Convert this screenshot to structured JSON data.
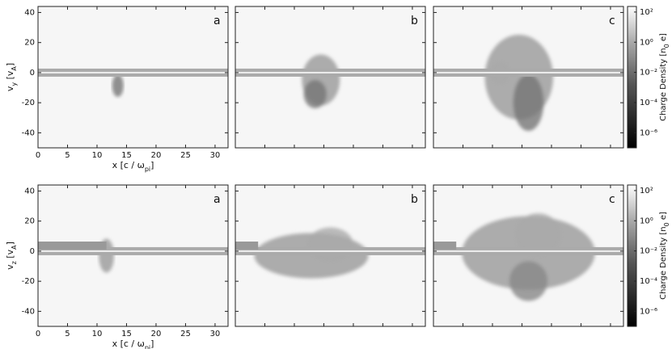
{
  "chart_data": [
    {
      "type": "heatmap",
      "panels": [
        "a",
        "b",
        "c"
      ],
      "x_label_parts": [
        "x [c / ω",
        "pi",
        "]"
      ],
      "y_label_parts": [
        "v",
        "y",
        " [v",
        "A",
        "]"
      ],
      "xlim": [
        0,
        32.2
      ],
      "xticks": [
        0,
        5,
        10,
        15,
        20,
        25,
        30
      ],
      "ylim": [
        -50,
        44
      ],
      "yticks": [
        -40,
        -20,
        0,
        20,
        40
      ],
      "colorbar": {
        "label_parts": [
          "Charge Density [n",
          "0",
          " e]"
        ],
        "log": true,
        "lim": [
          1e-07,
          234
        ],
        "ticks": [
          {
            "value": 100,
            "label": "10²"
          },
          {
            "value": 1,
            "label": "10⁰"
          },
          {
            "value": 0.01,
            "label": "10⁻²"
          },
          {
            "value": 0.0001,
            "label": "10⁻⁴"
          },
          {
            "value": 1e-06,
            "label": "10⁻⁶"
          }
        ]
      }
    },
    {
      "type": "heatmap",
      "panels": [
        "a",
        "b",
        "c"
      ],
      "x_label_parts": [
        "x [c / ω",
        "pi",
        "]"
      ],
      "y_label_parts": [
        "v",
        "z",
        " [v",
        "A",
        "]"
      ],
      "xlim": [
        0,
        32.2
      ],
      "xticks": [
        0,
        5,
        10,
        15,
        20,
        25,
        30
      ],
      "ylim": [
        -50,
        44
      ],
      "yticks": [
        -40,
        -20,
        0,
        20,
        40
      ],
      "colorbar": {
        "label_parts": [
          "Charge Density [n",
          "0",
          " e]"
        ],
        "log": true,
        "lim": [
          1e-07,
          234
        ],
        "ticks": [
          {
            "value": 100,
            "label": "10²"
          },
          {
            "value": 1,
            "label": "10⁰"
          },
          {
            "value": 0.01,
            "label": "10⁻²"
          },
          {
            "value": 0.0001,
            "label": "10⁻⁴"
          },
          {
            "value": 1e-06,
            "label": "10⁻⁶"
          }
        ]
      }
    }
  ]
}
